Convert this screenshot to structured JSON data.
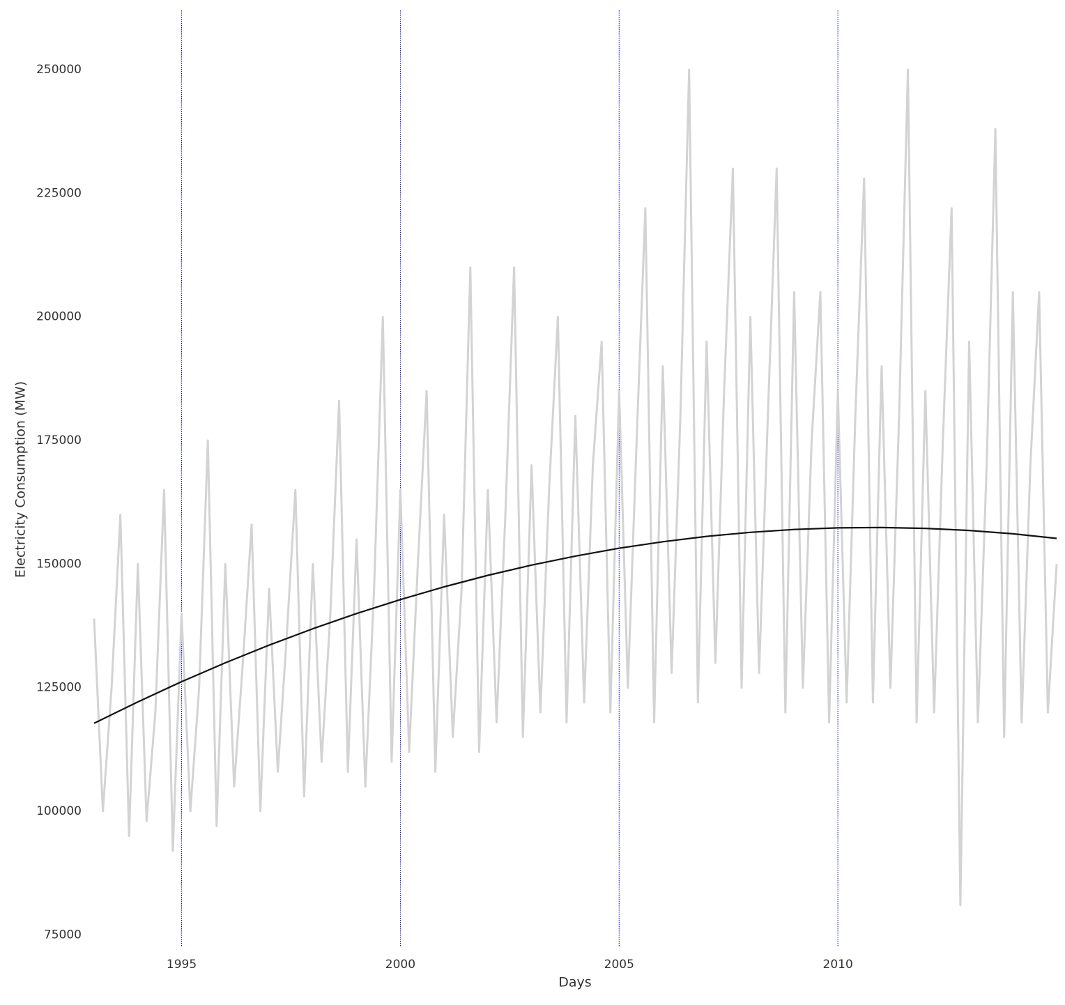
{
  "chart_data": {
    "type": "line",
    "x_label": "Days",
    "y_label": "Electricity Consumption (MW)",
    "xlim": [
      1993,
      2015
    ],
    "xticks": [
      1995,
      2000,
      2005,
      2010
    ],
    "ylim": [
      72500,
      262000
    ],
    "yticks": [
      75000,
      100000,
      125000,
      150000,
      175000,
      200000,
      225000,
      250000
    ],
    "grid": "x",
    "grid_color": "#0000cc",
    "series": [
      {
        "color": "#d3d3d3",
        "width": 3,
        "x": [
          1993,
          1993.2,
          1993.4,
          1993.6,
          1993.8,
          1994,
          1994.2,
          1994.4,
          1994.6,
          1994.8,
          1995,
          1995.2,
          1995.4,
          1995.6,
          1995.8,
          1996,
          1996.2,
          1996.4,
          1996.6,
          1996.8,
          1997,
          1997.2,
          1997.4,
          1997.6,
          1997.8,
          1998,
          1998.2,
          1998.4,
          1998.6,
          1998.8,
          1999,
          1999.2,
          1999.4,
          1999.6,
          1999.8,
          2000,
          2000.2,
          2000.4,
          2000.6,
          2000.8,
          2001,
          2001.2,
          2001.4,
          2001.6,
          2001.8,
          2002,
          2002.2,
          2002.4,
          2002.6,
          2002.8,
          2003,
          2003.2,
          2003.4,
          2003.6,
          2003.8,
          2004,
          2004.2,
          2004.4,
          2004.6,
          2004.8,
          2005,
          2005.2,
          2005.4,
          2005.6,
          2005.8,
          2006,
          2006.2,
          2006.4,
          2006.6,
          2006.8,
          2007,
          2007.2,
          2007.4,
          2007.6,
          2007.8,
          2008,
          2008.2,
          2008.4,
          2008.6,
          2008.8,
          2009,
          2009.2,
          2009.4,
          2009.6,
          2009.8,
          2010,
          2010.2,
          2010.4,
          2010.6,
          2010.8,
          2011,
          2011.2,
          2011.4,
          2011.6,
          2011.8,
          2012,
          2012.2,
          2012.4,
          2012.6,
          2012.8,
          2013,
          2013.2,
          2013.4,
          2013.6,
          2013.8,
          2014,
          2014.2,
          2014.4,
          2014.6,
          2014.8,
          2015
        ],
        "values": [
          139000,
          100000,
          125000,
          160000,
          95000,
          150000,
          98000,
          120000,
          165000,
          92000,
          140000,
          100000,
          125000,
          175000,
          97000,
          150000,
          105000,
          130000,
          158000,
          100000,
          145000,
          108000,
          135000,
          165000,
          103000,
          150000,
          110000,
          140000,
          183000,
          108000,
          155000,
          105000,
          145000,
          200000,
          110000,
          165000,
          112000,
          150000,
          185000,
          108000,
          160000,
          115000,
          145000,
          210000,
          112000,
          165000,
          118000,
          160000,
          210000,
          115000,
          170000,
          120000,
          165000,
          200000,
          118000,
          180000,
          122000,
          170000,
          195000,
          120000,
          185000,
          125000,
          175000,
          222000,
          118000,
          190000,
          128000,
          180000,
          250000,
          122000,
          195000,
          130000,
          185000,
          230000,
          125000,
          200000,
          128000,
          180000,
          230000,
          120000,
          205000,
          125000,
          175000,
          205000,
          118000,
          185000,
          122000,
          180000,
          228000,
          122000,
          190000,
          125000,
          180000,
          250000,
          118000,
          185000,
          120000,
          175000,
          222000,
          81000,
          195000,
          118000,
          170000,
          238000,
          115000,
          205000,
          118000,
          170000,
          205000,
          120000,
          150000
        ]
      },
      {
        "color": "#111111",
        "width": 2.2,
        "x": [
          1993,
          1994,
          1995,
          1996,
          1997,
          1998,
          1999,
          2000,
          2001,
          2002,
          2003,
          2004,
          2005,
          2006,
          2007,
          2008,
          2009,
          2010,
          2011,
          2012,
          2013,
          2014,
          2015
        ],
        "values": [
          117800,
          122120,
          126200,
          130020,
          133600,
          136920,
          140000,
          142820,
          145400,
          147720,
          149800,
          151620,
          153200,
          154520,
          155600,
          156420,
          157000,
          157320,
          157400,
          157220,
          156800,
          156120,
          155200
        ]
      }
    ]
  }
}
